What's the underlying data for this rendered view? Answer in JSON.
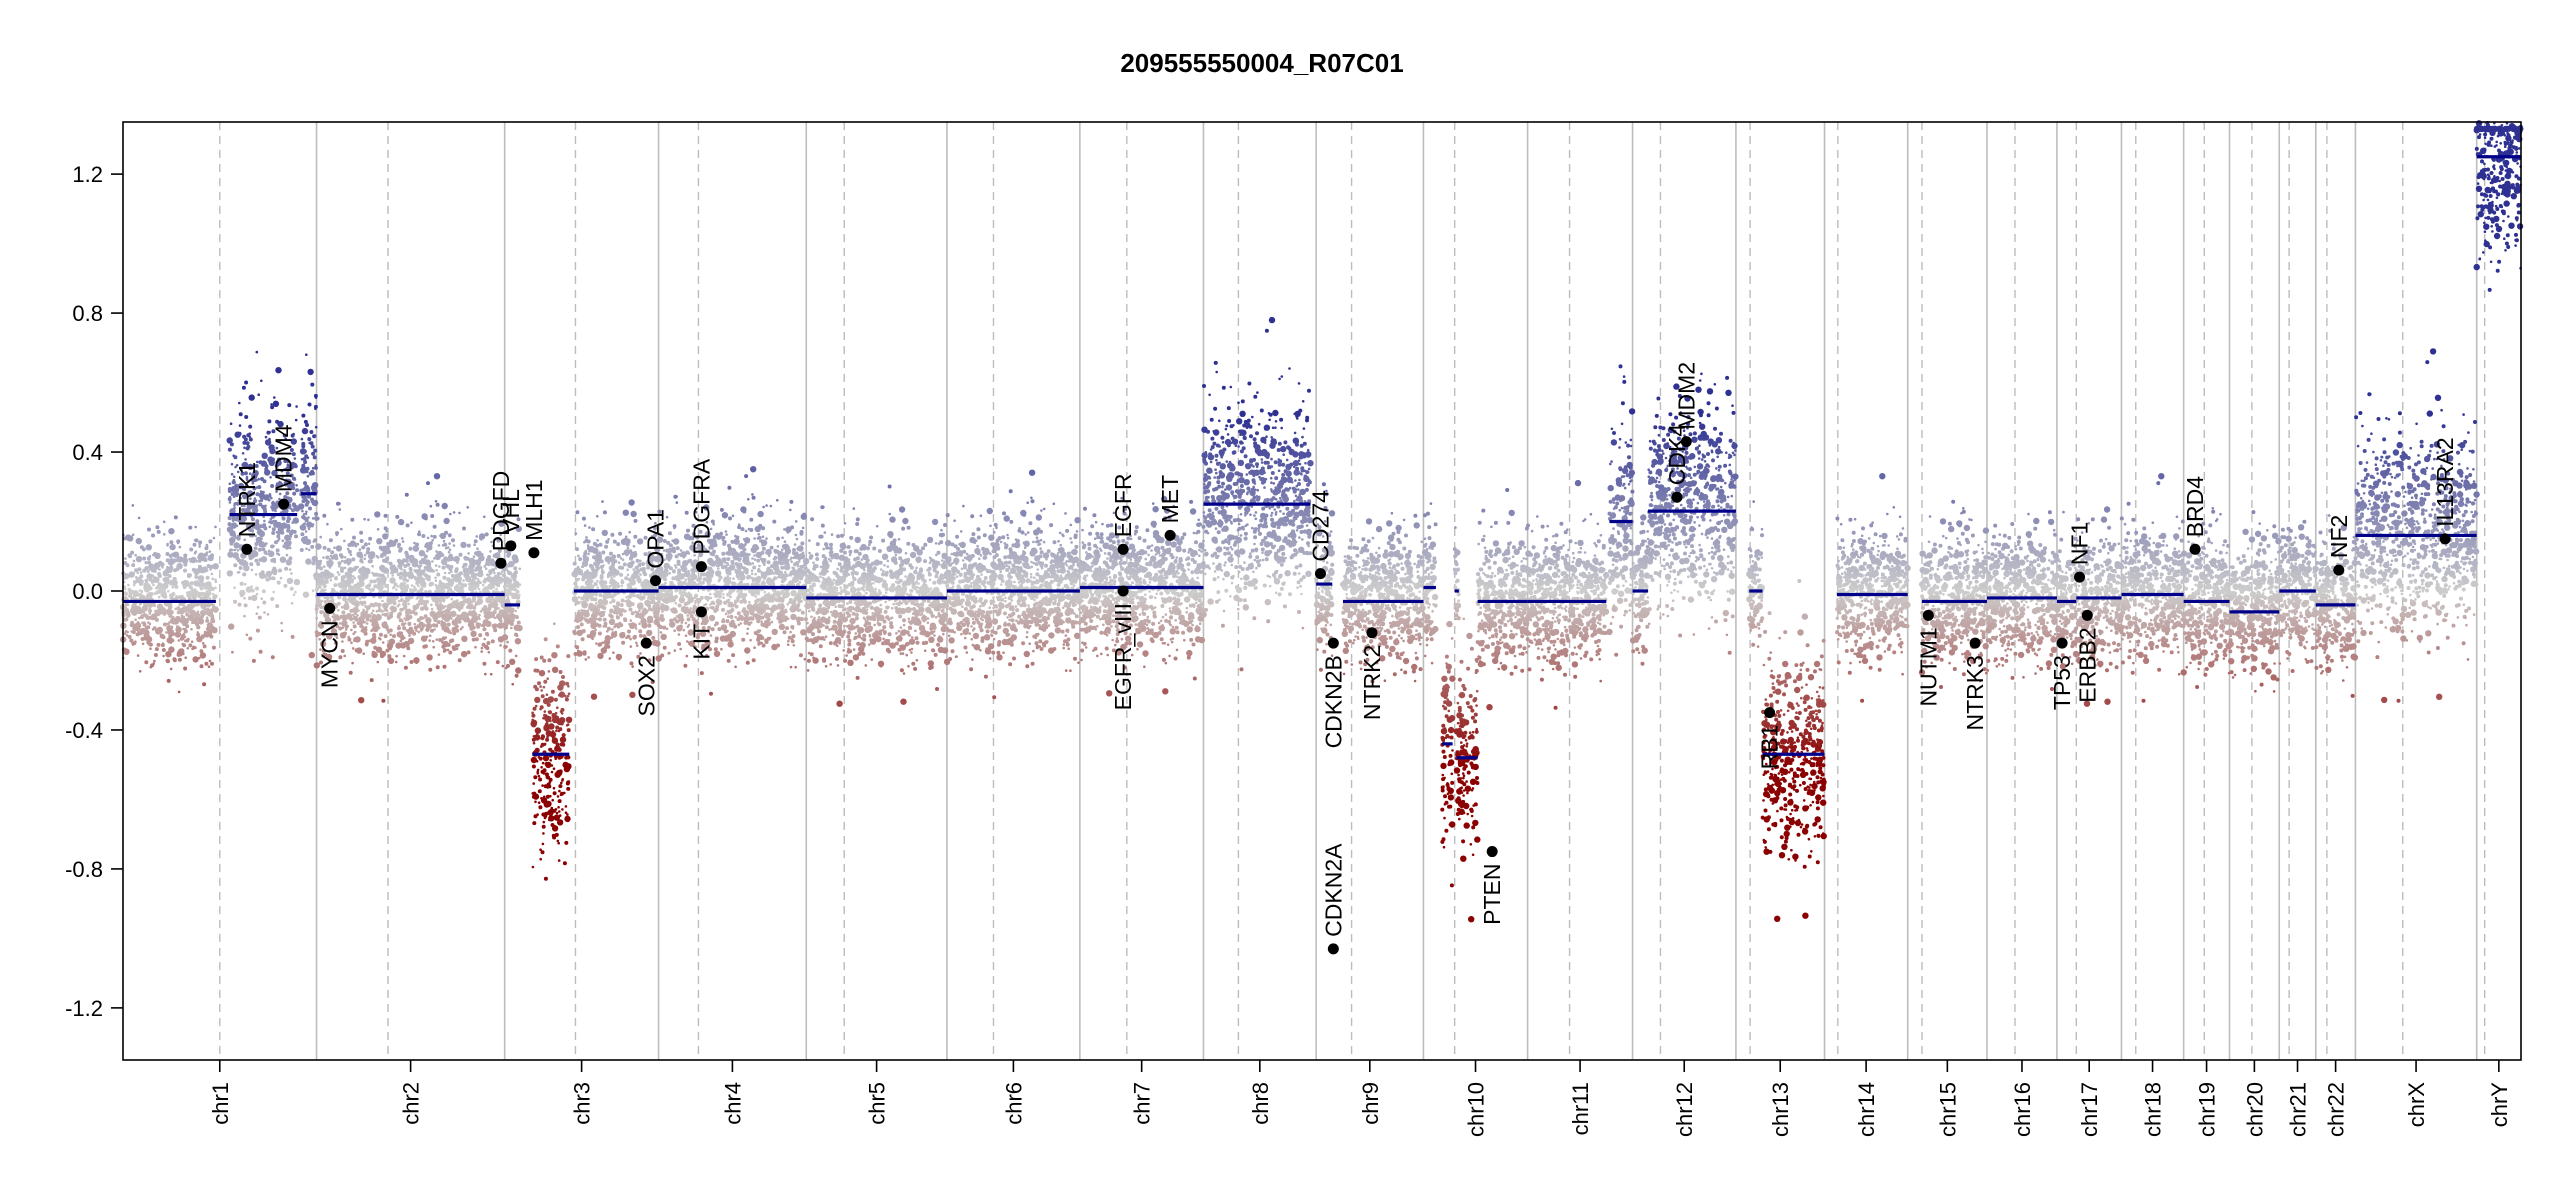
{
  "chart_data": {
    "type": "scatter",
    "title": "209555550004_R07C01",
    "xlabel": "",
    "ylabel": "",
    "ylim": [
      -1.35,
      1.35
    ],
    "yticks": [
      -1.2,
      -0.8,
      -0.4,
      0.0,
      0.4,
      0.8,
      1.2
    ],
    "ytick_labels": [
      "-1.2",
      "-0.8",
      "-0.4",
      "0.0",
      "0.4",
      "0.8",
      "1.2"
    ],
    "grid": false,
    "colors": {
      "gain": "#2e3192",
      "loss": "#8b0000",
      "neutral": "#c8c8c8",
      "segment": "#00008b",
      "gene_point": "#000000",
      "boundary": "#bdbdbd"
    },
    "chromosomes": [
      {
        "name": "chr1",
        "size": 249,
        "centromere": 0.5
      },
      {
        "name": "chr2",
        "size": 242,
        "centromere": 0.38
      },
      {
        "name": "chr3",
        "size": 198,
        "centromere": 0.46
      },
      {
        "name": "chr4",
        "size": 190,
        "centromere": 0.27
      },
      {
        "name": "chr5",
        "size": 181,
        "centromere": 0.27
      },
      {
        "name": "chr6",
        "size": 171,
        "centromere": 0.35
      },
      {
        "name": "chr7",
        "size": 159,
        "centromere": 0.38
      },
      {
        "name": "chr8",
        "size": 145,
        "centromere": 0.31
      },
      {
        "name": "chr9",
        "size": 138,
        "centromere": 0.33
      },
      {
        "name": "chr10",
        "size": 134,
        "centromere": 0.3
      },
      {
        "name": "chr11",
        "size": 135,
        "centromere": 0.4
      },
      {
        "name": "chr12",
        "size": 133,
        "centromere": 0.27
      },
      {
        "name": "chr13",
        "size": 114,
        "centromere": 0.16
      },
      {
        "name": "chr14",
        "size": 107,
        "centromere": 0.16
      },
      {
        "name": "chr15",
        "size": 102,
        "centromere": 0.18
      },
      {
        "name": "chr16",
        "size": 90,
        "centromere": 0.4
      },
      {
        "name": "chr17",
        "size": 83,
        "centromere": 0.3
      },
      {
        "name": "chr18",
        "size": 80,
        "centromere": 0.23
      },
      {
        "name": "chr19",
        "size": 59,
        "centromere": 0.45
      },
      {
        "name": "chr20",
        "size": 64,
        "centromere": 0.45
      },
      {
        "name": "chr21",
        "size": 47,
        "centromere": 0.27
      },
      {
        "name": "chr22",
        "size": 51,
        "centromere": 0.28
      },
      {
        "name": "chrX",
        "size": 156,
        "centromere": 0.39
      },
      {
        "name": "chrY",
        "size": 57,
        "centromere": 0.18
      }
    ],
    "segments": [
      {
        "chr": "chr1",
        "start": 0.0,
        "end": 0.48,
        "value": -0.03
      },
      {
        "chr": "chr1",
        "start": 0.55,
        "end": 0.9,
        "value": 0.22
      },
      {
        "chr": "chr1",
        "start": 0.92,
        "end": 1.0,
        "value": 0.28
      },
      {
        "chr": "chr2",
        "start": 0.0,
        "end": 1.0,
        "value": -0.01
      },
      {
        "chr": "chr3",
        "start": 0.0,
        "end": 0.1,
        "value": -0.04
      },
      {
        "chr": "chr3",
        "start": 0.18,
        "end": 0.42,
        "value": -0.47
      },
      {
        "chr": "chr3",
        "start": 0.45,
        "end": 1.0,
        "value": 0.0
      },
      {
        "chr": "chr4",
        "start": 0.0,
        "end": 1.0,
        "value": 0.01
      },
      {
        "chr": "chr5",
        "start": 0.0,
        "end": 1.0,
        "value": -0.02
      },
      {
        "chr": "chr6",
        "start": 0.0,
        "end": 1.0,
        "value": 0.0
      },
      {
        "chr": "chr7",
        "start": 0.0,
        "end": 1.0,
        "value": 0.01
      },
      {
        "chr": "chr8",
        "start": 0.0,
        "end": 0.95,
        "value": 0.25
      },
      {
        "chr": "chr9",
        "start": 0.0,
        "end": 0.15,
        "value": 0.02
      },
      {
        "chr": "chr9",
        "start": 0.25,
        "end": 1.0,
        "value": -0.03
      },
      {
        "chr": "chr10",
        "start": 0.0,
        "end": 0.12,
        "value": 0.01
      },
      {
        "chr": "chr10",
        "start": 0.18,
        "end": 0.28,
        "value": -0.44
      },
      {
        "chr": "chr10",
        "start": 0.3,
        "end": 0.34,
        "value": 0.0
      },
      {
        "chr": "chr10",
        "start": 0.32,
        "end": 0.52,
        "value": -0.48
      },
      {
        "chr": "chr10",
        "start": 0.52,
        "end": 1.0,
        "value": -0.03
      },
      {
        "chr": "chr11",
        "start": 0.0,
        "end": 0.75,
        "value": -0.03
      },
      {
        "chr": "chr11",
        "start": 0.78,
        "end": 1.0,
        "value": 0.2
      },
      {
        "chr": "chr12",
        "start": 0.0,
        "end": 0.15,
        "value": 0.0
      },
      {
        "chr": "chr12",
        "start": 0.15,
        "end": 1.0,
        "value": 0.23
      },
      {
        "chr": "chr13",
        "start": 0.15,
        "end": 0.3,
        "value": 0.0
      },
      {
        "chr": "chr13",
        "start": 0.3,
        "end": 1.0,
        "value": -0.47
      },
      {
        "chr": "chr14",
        "start": 0.15,
        "end": 1.0,
        "value": -0.01
      },
      {
        "chr": "chr15",
        "start": 0.18,
        "end": 1.0,
        "value": -0.03
      },
      {
        "chr": "chr16",
        "start": 0.0,
        "end": 1.0,
        "value": -0.02
      },
      {
        "chr": "chr17",
        "start": 0.0,
        "end": 0.3,
        "value": -0.03
      },
      {
        "chr": "chr17",
        "start": 0.3,
        "end": 1.0,
        "value": -0.02
      },
      {
        "chr": "chr18",
        "start": 0.0,
        "end": 1.0,
        "value": -0.01
      },
      {
        "chr": "chr19",
        "start": 0.0,
        "end": 1.0,
        "value": -0.03
      },
      {
        "chr": "chr20",
        "start": 0.0,
        "end": 1.0,
        "value": -0.06
      },
      {
        "chr": "chr21",
        "start": 0.0,
        "end": 1.0,
        "value": 0.0
      },
      {
        "chr": "chr22",
        "start": 0.0,
        "end": 1.0,
        "value": -0.04
      },
      {
        "chr": "chrX",
        "start": 0.0,
        "end": 1.0,
        "value": 0.16
      },
      {
        "chr": "chrY",
        "start": 0.0,
        "end": 1.0,
        "value": 1.25
      }
    ],
    "genes": [
      {
        "name": "NTRK1",
        "chr": "chr1",
        "pos": 0.64,
        "value": 0.12,
        "label": "above"
      },
      {
        "name": "MDM4",
        "chr": "chr1",
        "pos": 0.83,
        "value": 0.25,
        "label": "above"
      },
      {
        "name": "MYCN",
        "chr": "chr2",
        "pos": 0.07,
        "value": -0.05,
        "label": "below"
      },
      {
        "name": "PDGFD",
        "chr": "chr2",
        "pos": 0.98,
        "value": 0.08,
        "label": "above"
      },
      {
        "name": "VHL",
        "chr": "chr3",
        "pos": 0.04,
        "value": 0.13,
        "label": "above"
      },
      {
        "name": "MLH1",
        "chr": "chr3",
        "pos": 0.19,
        "value": 0.11,
        "label": "above"
      },
      {
        "name": "SOX2",
        "chr": "chr3",
        "pos": 0.92,
        "value": -0.15,
        "label": "below"
      },
      {
        "name": "OPA1",
        "chr": "chr3",
        "pos": 0.98,
        "value": 0.03,
        "label": "above"
      },
      {
        "name": "KIT",
        "chr": "chr4",
        "pos": 0.29,
        "value": -0.06,
        "label": "below"
      },
      {
        "name": "PDGFRA",
        "chr": "chr4",
        "pos": 0.29,
        "value": 0.07,
        "label": "above"
      },
      {
        "name": "EGFR_vIII",
        "chr": "chr7",
        "pos": 0.35,
        "value": 0.0,
        "label": "below"
      },
      {
        "name": "EGFR",
        "chr": "chr7",
        "pos": 0.35,
        "value": 0.12,
        "label": "above"
      },
      {
        "name": "MET",
        "chr": "chr7",
        "pos": 0.73,
        "value": 0.16,
        "label": "above"
      },
      {
        "name": "CD274",
        "chr": "chr9",
        "pos": 0.04,
        "value": 0.05,
        "label": "above"
      },
      {
        "name": "CDKN2B",
        "chr": "chr9",
        "pos": 0.16,
        "value": -0.15,
        "label": "below"
      },
      {
        "name": "CDKN2A",
        "chr": "chr9",
        "pos": 0.16,
        "value": -1.03,
        "label": "above"
      },
      {
        "name": "NTRK2",
        "chr": "chr9",
        "pos": 0.52,
        "value": -0.12,
        "label": "below"
      },
      {
        "name": "PTEN",
        "chr": "chr10",
        "pos": 0.66,
        "value": -0.75,
        "label": "below"
      },
      {
        "name": "CDK4",
        "chr": "chr12",
        "pos": 0.43,
        "value": 0.27,
        "label": "above"
      },
      {
        "name": "MDM2",
        "chr": "chr12",
        "pos": 0.52,
        "value": 0.43,
        "label": "above"
      },
      {
        "name": "RB1",
        "chr": "chr13",
        "pos": 0.38,
        "value": -0.35,
        "label": "below"
      },
      {
        "name": "NUTM1",
        "chr": "chr15",
        "pos": 0.26,
        "value": -0.07,
        "label": "below"
      },
      {
        "name": "NTRK3",
        "chr": "chr15",
        "pos": 0.85,
        "value": -0.15,
        "label": "below"
      },
      {
        "name": "TP53",
        "chr": "chr17",
        "pos": 0.08,
        "value": -0.15,
        "label": "below"
      },
      {
        "name": "NF1",
        "chr": "chr17",
        "pos": 0.35,
        "value": 0.04,
        "label": "above"
      },
      {
        "name": "ERBB2",
        "chr": "chr17",
        "pos": 0.47,
        "value": -0.07,
        "label": "below"
      },
      {
        "name": "BRD4",
        "chr": "chr19",
        "pos": 0.25,
        "value": 0.12,
        "label": "above"
      },
      {
        "name": "NF2",
        "chr": "chr22",
        "pos": 0.58,
        "value": 0.06,
        "label": "above"
      },
      {
        "name": "IL13RA2",
        "chr": "chrX",
        "pos": 0.74,
        "value": 0.15,
        "label": "above"
      }
    ]
  }
}
